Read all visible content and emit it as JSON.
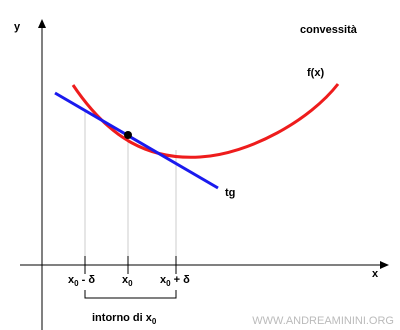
{
  "axes": {
    "y_label": "y",
    "x_label": "x"
  },
  "title": "convessità",
  "curve_label": "f(x)",
  "tangent_label": "tg",
  "ticks": [
    {
      "base": "x",
      "sub": "0",
      "suffix": " - δ"
    },
    {
      "base": "x",
      "sub": "0"
    },
    {
      "base": "x",
      "sub": "0",
      "suffix": " + δ"
    }
  ],
  "neighborhood": {
    "text": "intorno di ",
    "base": "x",
    "sub": "0"
  },
  "watermark": "WWW.ANDREAMININI.ORG"
}
